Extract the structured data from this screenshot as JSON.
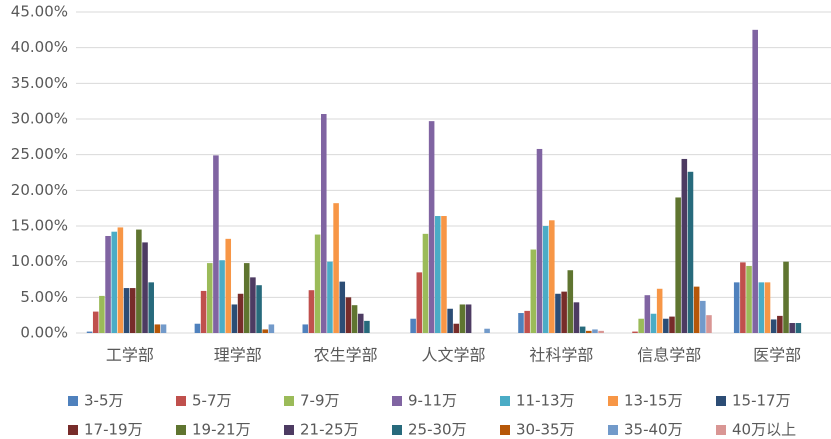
{
  "chart_data": {
    "type": "bar",
    "categories": [
      "工学部",
      "理学部",
      "农生学部",
      "人文学部",
      "社科学部",
      "信息学部",
      "医学部"
    ],
    "series": [
      {
        "name": "3-5万",
        "color": "#4f81bd",
        "values": [
          0.2,
          1.3,
          1.2,
          2.0,
          2.8,
          0,
          7.1
        ]
      },
      {
        "name": "5-7万",
        "color": "#c0504d",
        "values": [
          3.0,
          5.9,
          6.0,
          8.5,
          3.1,
          0.2,
          9.9
        ]
      },
      {
        "name": "7-9万",
        "color": "#9bbb59",
        "values": [
          5.2,
          9.8,
          13.8,
          13.9,
          11.7,
          2.0,
          9.4
        ]
      },
      {
        "name": "9-11万",
        "color": "#8064a2",
        "values": [
          13.6,
          24.9,
          30.7,
          29.7,
          25.8,
          5.3,
          42.5
        ]
      },
      {
        "name": "11-13万",
        "color": "#4bacc6",
        "values": [
          14.2,
          10.2,
          10.0,
          16.4,
          15.0,
          2.7,
          7.1
        ]
      },
      {
        "name": "13-15万",
        "color": "#f79646",
        "values": [
          14.8,
          13.2,
          18.2,
          16.4,
          15.8,
          6.2,
          7.1
        ]
      },
      {
        "name": "15-17万",
        "color": "#2c4d75",
        "values": [
          6.3,
          4.0,
          7.2,
          3.4,
          5.5,
          2.0,
          1.9
        ]
      },
      {
        "name": "17-19万",
        "color": "#772c2a",
        "values": [
          6.3,
          5.5,
          5.0,
          1.3,
          5.8,
          2.3,
          2.4
        ]
      },
      {
        "name": "19-21万",
        "color": "#5f7530",
        "values": [
          14.5,
          9.8,
          3.9,
          4.0,
          8.8,
          19.0,
          10.0
        ]
      },
      {
        "name": "21-25万",
        "color": "#4d3b62",
        "values": [
          12.7,
          7.8,
          2.7,
          4.0,
          4.3,
          24.4,
          1.4
        ]
      },
      {
        "name": "25-30万",
        "color": "#276a7c",
        "values": [
          7.1,
          6.7,
          1.7,
          0,
          0.9,
          22.6,
          1.4
        ]
      },
      {
        "name": "30-35万",
        "color": "#b65708",
        "values": [
          1.2,
          0.5,
          0,
          0,
          0.3,
          6.5,
          0
        ]
      },
      {
        "name": "35-40万",
        "color": "#729aca",
        "values": [
          1.2,
          1.2,
          0,
          0.6,
          0.5,
          4.5,
          0
        ]
      },
      {
        "name": "40万以上",
        "color": "#d99694",
        "values": [
          0,
          0,
          0,
          0,
          0.3,
          2.5,
          0
        ]
      }
    ],
    "ylim": [
      0,
      45
    ],
    "yticks": [
      {
        "value": 0,
        "label": "0.00%"
      },
      {
        "value": 5,
        "label": "5.00%"
      },
      {
        "value": 10,
        "label": "10.00%"
      },
      {
        "value": 15,
        "label": "15.00%"
      },
      {
        "value": 20,
        "label": "20.00%"
      },
      {
        "value": 25,
        "label": "25.00%"
      },
      {
        "value": 30,
        "label": "30.00%"
      },
      {
        "value": 35,
        "label": "35.00%"
      },
      {
        "value": 40,
        "label": "40.00%"
      },
      {
        "value": 45,
        "label": "45.00%"
      }
    ],
    "grid": true,
    "legend": "bottom"
  }
}
